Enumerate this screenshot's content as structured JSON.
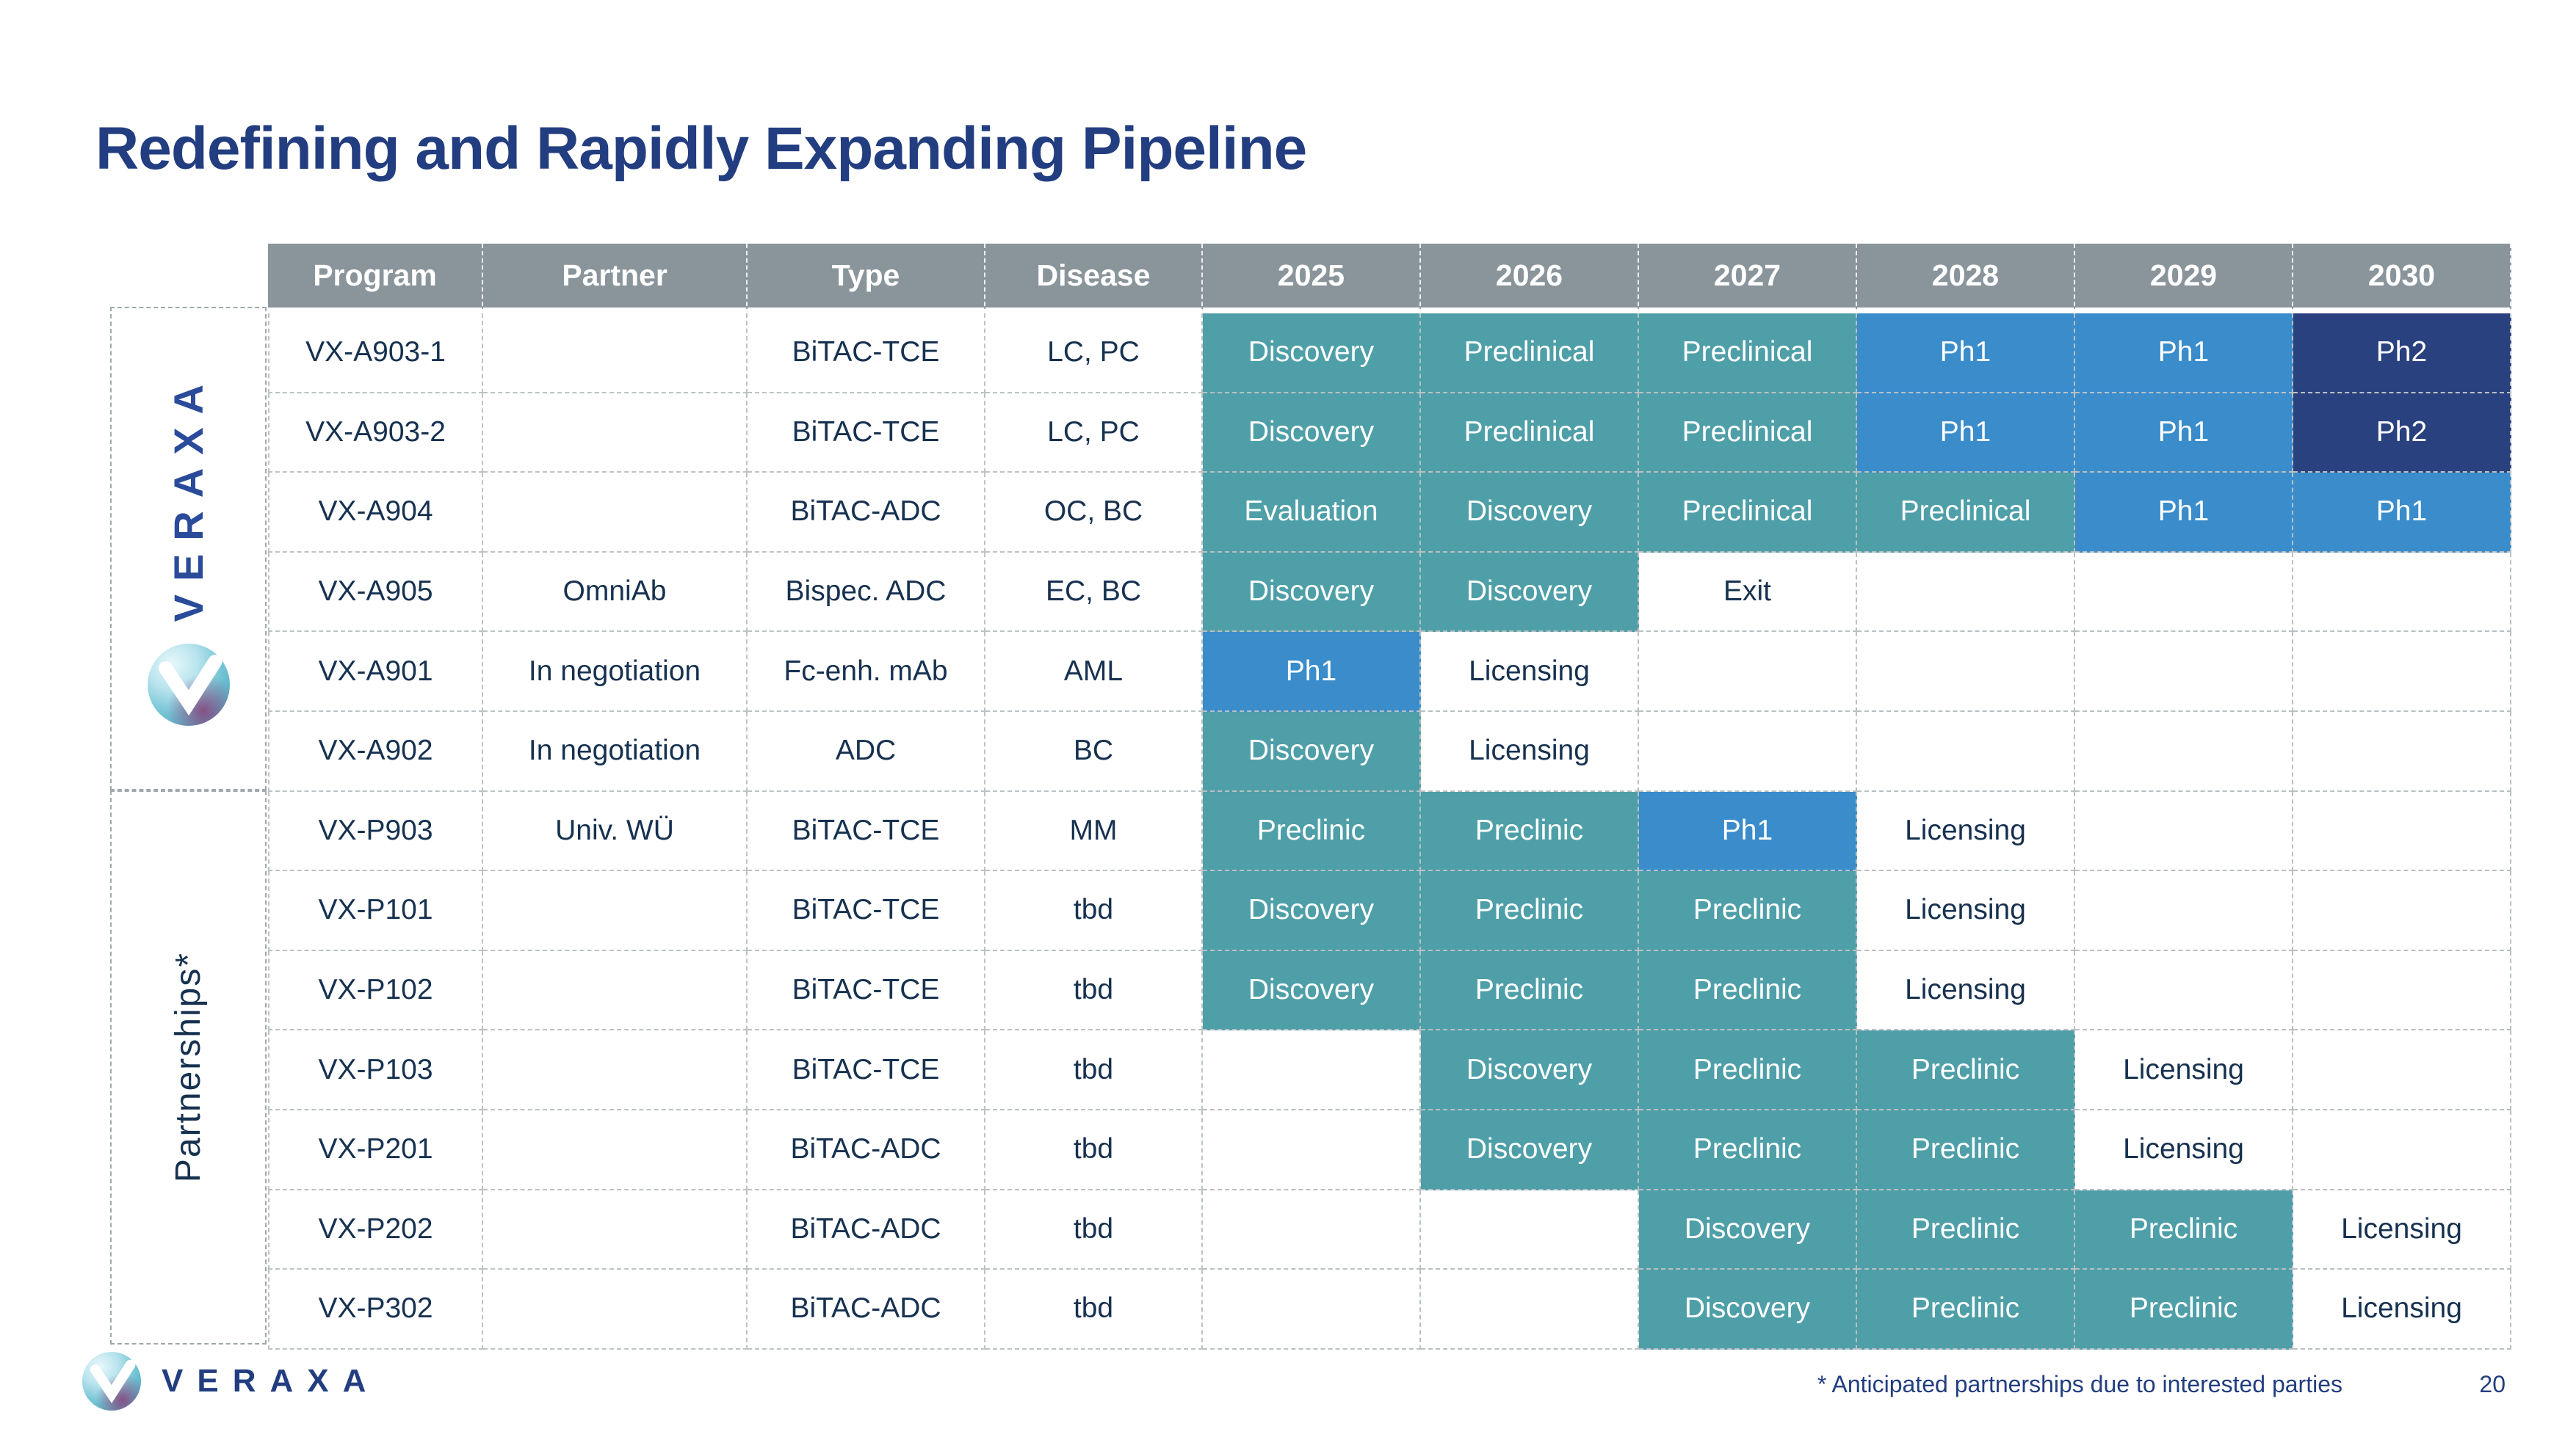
{
  "slide": {
    "title": "Redefining and Rapidly Expanding Pipeline",
    "footnote": "* Anticipated partnerships due to interested parties",
    "page_number": "20"
  },
  "brand": {
    "wordmark": "VERAXA",
    "logo_icon": "veraxa-orb-icon"
  },
  "colors": {
    "teal": "#4F9FA8",
    "blue": "#3A8CCB",
    "navy": "#2A4180",
    "header_gray": "#8A959B",
    "title_navy": "#223E80",
    "sidebar_blue": "#2A4A9A",
    "text_dark": "#173150"
  },
  "table": {
    "headers": [
      "Program",
      "Partner",
      "Type",
      "Disease",
      "2025",
      "2026",
      "2027",
      "2028",
      "2029",
      "2030"
    ],
    "groups": [
      {
        "label": "VERAXA",
        "rows": [
          {
            "program": "VX-A903-1",
            "partner": "",
            "type": "BiTAC-TCE",
            "disease": "LC, PC",
            "stages": [
              {
                "text": "Discovery",
                "color": "teal"
              },
              {
                "text": "Preclinical",
                "color": "teal"
              },
              {
                "text": "Preclinical",
                "color": "teal"
              },
              {
                "text": "Ph1",
                "color": "blue"
              },
              {
                "text": "Ph1",
                "color": "blue"
              },
              {
                "text": "Ph2",
                "color": "navy"
              }
            ]
          },
          {
            "program": "VX-A903-2",
            "partner": "",
            "type": "BiTAC-TCE",
            "disease": "LC, PC",
            "stages": [
              {
                "text": "Discovery",
                "color": "teal"
              },
              {
                "text": "Preclinical",
                "color": "teal"
              },
              {
                "text": "Preclinical",
                "color": "teal"
              },
              {
                "text": "Ph1",
                "color": "blue"
              },
              {
                "text": "Ph1",
                "color": "blue"
              },
              {
                "text": "Ph2",
                "color": "navy"
              }
            ]
          },
          {
            "program": "VX-A904",
            "partner": "",
            "type": "BiTAC-ADC",
            "disease": "OC, BC",
            "stages": [
              {
                "text": "Evaluation",
                "color": "teal"
              },
              {
                "text": "Discovery",
                "color": "teal"
              },
              {
                "text": "Preclinical",
                "color": "teal"
              },
              {
                "text": "Preclinical",
                "color": "teal"
              },
              {
                "text": "Ph1",
                "color": "blue"
              },
              {
                "text": "Ph1",
                "color": "blue"
              }
            ]
          },
          {
            "program": "VX-A905",
            "partner": "OmniAb",
            "type": "Bispec. ADC",
            "disease": "EC, BC",
            "stages": [
              {
                "text": "Discovery",
                "color": "teal"
              },
              {
                "text": "Discovery",
                "color": "teal"
              },
              {
                "text": "Exit",
                "color": "none"
              },
              {
                "text": "",
                "color": "empty"
              },
              {
                "text": "",
                "color": "empty"
              },
              {
                "text": "",
                "color": "empty"
              }
            ]
          },
          {
            "program": "VX-A901",
            "partner": "In negotiation",
            "type": "Fc-enh. mAb",
            "disease": "AML",
            "stages": [
              {
                "text": "Ph1",
                "color": "blue"
              },
              {
                "text": "Licensing",
                "color": "none"
              },
              {
                "text": "",
                "color": "empty"
              },
              {
                "text": "",
                "color": "empty"
              },
              {
                "text": "",
                "color": "empty"
              },
              {
                "text": "",
                "color": "empty"
              }
            ]
          },
          {
            "program": "VX-A902",
            "partner": "In negotiation",
            "type": "ADC",
            "disease": "BC",
            "stages": [
              {
                "text": "Discovery",
                "color": "teal"
              },
              {
                "text": "Licensing",
                "color": "none"
              },
              {
                "text": "",
                "color": "empty"
              },
              {
                "text": "",
                "color": "empty"
              },
              {
                "text": "",
                "color": "empty"
              },
              {
                "text": "",
                "color": "empty"
              }
            ]
          }
        ]
      },
      {
        "label": "Partnerships*",
        "rows": [
          {
            "program": "VX-P903",
            "partner": "Univ. WÜ",
            "type": "BiTAC-TCE",
            "disease": "MM",
            "stages": [
              {
                "text": "Preclinic",
                "color": "teal"
              },
              {
                "text": "Preclinic",
                "color": "teal"
              },
              {
                "text": "Ph1",
                "color": "blue"
              },
              {
                "text": "Licensing",
                "color": "none"
              },
              {
                "text": "",
                "color": "empty"
              },
              {
                "text": "",
                "color": "empty"
              }
            ]
          },
          {
            "program": "VX-P101",
            "partner": "",
            "type": "BiTAC-TCE",
            "disease": "tbd",
            "stages": [
              {
                "text": "Discovery",
                "color": "teal"
              },
              {
                "text": "Preclinic",
                "color": "teal"
              },
              {
                "text": "Preclinic",
                "color": "teal"
              },
              {
                "text": "Licensing",
                "color": "none"
              },
              {
                "text": "",
                "color": "empty"
              },
              {
                "text": "",
                "color": "empty"
              }
            ]
          },
          {
            "program": "VX-P102",
            "partner": "",
            "type": "BiTAC-TCE",
            "disease": "tbd",
            "stages": [
              {
                "text": "Discovery",
                "color": "teal"
              },
              {
                "text": "Preclinic",
                "color": "teal"
              },
              {
                "text": "Preclinic",
                "color": "teal"
              },
              {
                "text": "Licensing",
                "color": "none"
              },
              {
                "text": "",
                "color": "empty"
              },
              {
                "text": "",
                "color": "empty"
              }
            ]
          },
          {
            "program": "VX-P103",
            "partner": "",
            "type": "BiTAC-TCE",
            "disease": "tbd",
            "stages": [
              {
                "text": "",
                "color": "empty"
              },
              {
                "text": "Discovery",
                "color": "teal"
              },
              {
                "text": "Preclinic",
                "color": "teal"
              },
              {
                "text": "Preclinic",
                "color": "teal"
              },
              {
                "text": "Licensing",
                "color": "none"
              },
              {
                "text": "",
                "color": "empty"
              }
            ]
          },
          {
            "program": "VX-P201",
            "partner": "",
            "type": "BiTAC-ADC",
            "disease": "tbd",
            "stages": [
              {
                "text": "",
                "color": "empty"
              },
              {
                "text": "Discovery",
                "color": "teal"
              },
              {
                "text": "Preclinic",
                "color": "teal"
              },
              {
                "text": "Preclinic",
                "color": "teal"
              },
              {
                "text": "Licensing",
                "color": "none"
              },
              {
                "text": "",
                "color": "empty"
              }
            ]
          },
          {
            "program": "VX-P202",
            "partner": "",
            "type": "BiTAC-ADC",
            "disease": "tbd",
            "stages": [
              {
                "text": "",
                "color": "empty"
              },
              {
                "text": "",
                "color": "empty"
              },
              {
                "text": "Discovery",
                "color": "teal"
              },
              {
                "text": "Preclinic",
                "color": "teal"
              },
              {
                "text": "Preclinic",
                "color": "teal"
              },
              {
                "text": "Licensing",
                "color": "none"
              }
            ]
          },
          {
            "program": "VX-P302",
            "partner": "",
            "type": "BiTAC-ADC",
            "disease": "tbd",
            "stages": [
              {
                "text": "",
                "color": "empty"
              },
              {
                "text": "",
                "color": "empty"
              },
              {
                "text": "Discovery",
                "color": "teal"
              },
              {
                "text": "Preclinic",
                "color": "teal"
              },
              {
                "text": "Preclinic",
                "color": "teal"
              },
              {
                "text": "Licensing",
                "color": "none"
              }
            ]
          }
        ]
      }
    ]
  }
}
